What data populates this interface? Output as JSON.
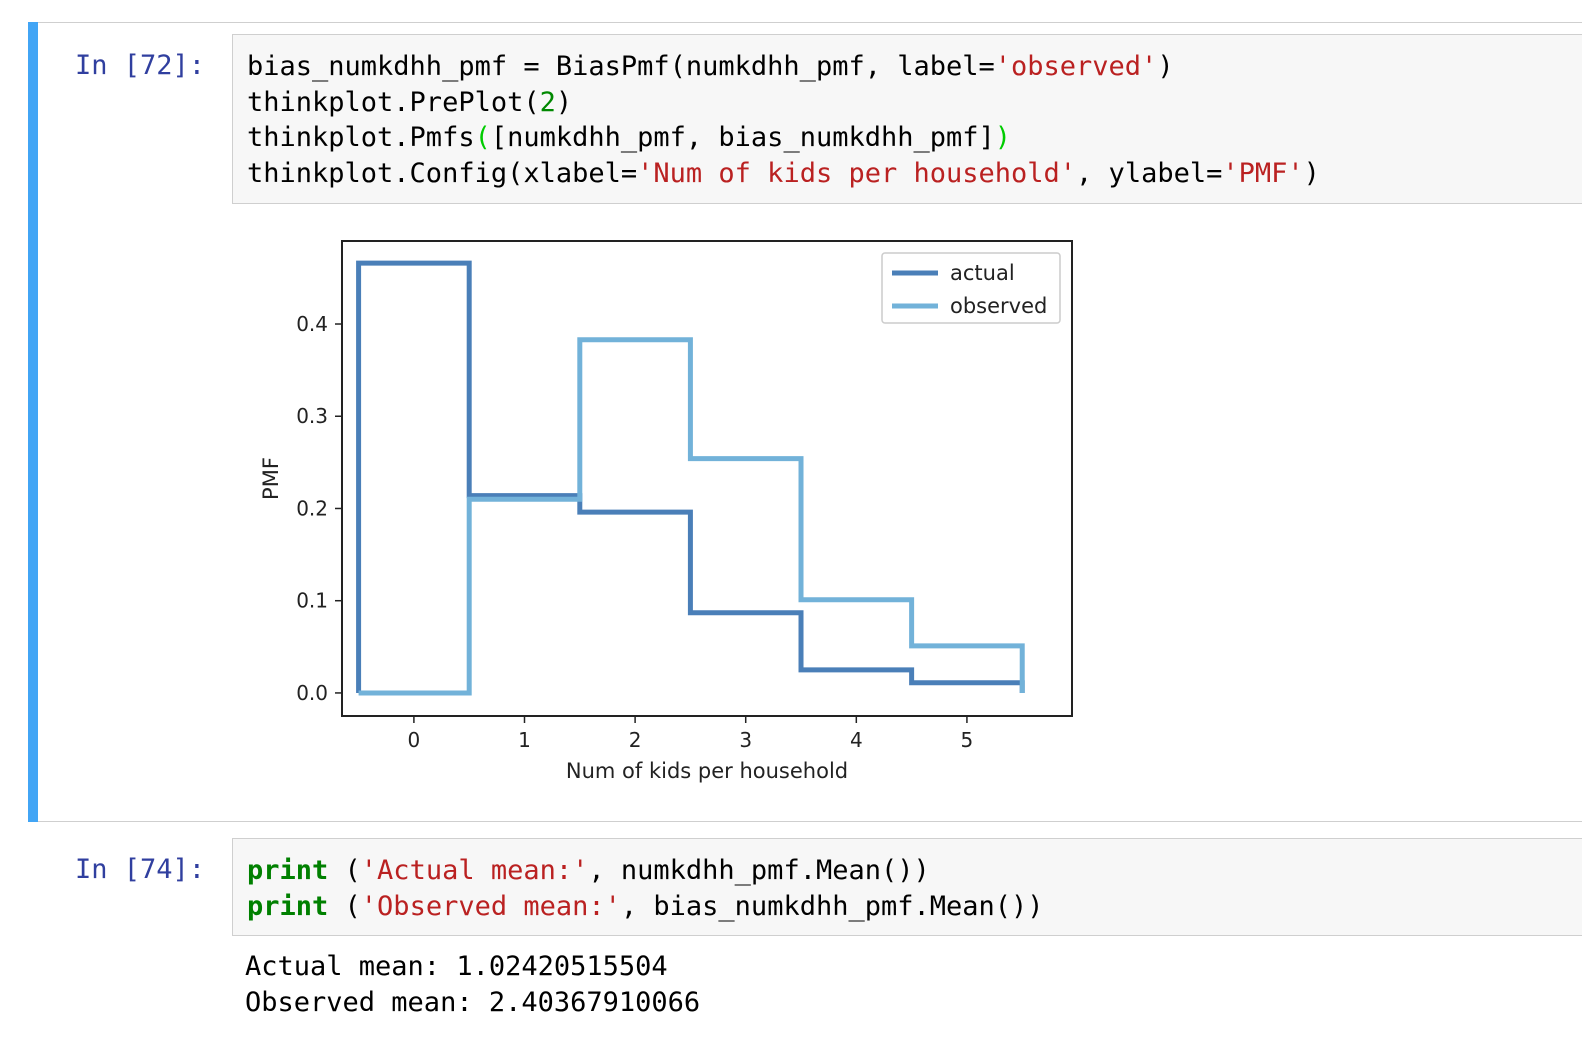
{
  "cells": [
    {
      "prompt": "In [72]:",
      "lines": [
        [
          {
            "t": "bias_numkdhh_pmf = BiasPmf(numkdhh_pmf, label=",
            "c": ""
          },
          {
            "t": "'observed'",
            "c": "s"
          },
          {
            "t": ")",
            "c": ""
          }
        ],
        [
          {
            "t": "thinkplot.PrePlot(",
            "c": ""
          },
          {
            "t": "2",
            "c": "n"
          },
          {
            "t": ")",
            "c": ""
          }
        ],
        [
          {
            "t": "thinkplot.Pmfs",
            "c": ""
          },
          {
            "t": "(",
            "c": "bm"
          },
          {
            "t": "[numkdhh_pmf, bias_numkdhh_pmf]",
            "c": ""
          },
          {
            "t": ")",
            "c": "bm"
          }
        ],
        [
          {
            "t": "thinkplot.Config(xlabel=",
            "c": ""
          },
          {
            "t": "'Num of kids per household'",
            "c": "s"
          },
          {
            "t": ", ylabel=",
            "c": ""
          },
          {
            "t": "'PMF'",
            "c": "s"
          },
          {
            "t": ")",
            "c": ""
          }
        ]
      ]
    },
    {
      "prompt": "In [74]:",
      "lines": [
        [
          {
            "t": "print",
            "c": "kw"
          },
          {
            "t": " (",
            "c": ""
          },
          {
            "t": "'Actual mean:'",
            "c": "s"
          },
          {
            "t": ", numkdhh_pmf.Mean())",
            "c": ""
          }
        ],
        [
          {
            "t": "print",
            "c": "kw"
          },
          {
            "t": " (",
            "c": ""
          },
          {
            "t": "'Observed mean:'",
            "c": "s"
          },
          {
            "t": ", bias_numkdhh_pmf.Mean())",
            "c": ""
          }
        ]
      ],
      "output": [
        "Actual mean: 1.02420515504",
        "Observed mean: 2.40367910066"
      ]
    }
  ],
  "chart_data": {
    "type": "line",
    "step": true,
    "title": "",
    "xlabel": "Num of kids per household",
    "ylabel": "PMF",
    "xlim": [
      -0.65,
      5.95
    ],
    "ylim": [
      -0.025,
      0.49
    ],
    "x_ticks": [
      0,
      1,
      2,
      3,
      4,
      5
    ],
    "y_ticks": [
      0.0,
      0.1,
      0.2,
      0.3,
      0.4
    ],
    "y_tick_labels": [
      "0.0",
      "0.1",
      "0.2",
      "0.3",
      "0.4"
    ],
    "legend_position": "top-right",
    "x": [
      0,
      1,
      2,
      3,
      4,
      5
    ],
    "series": [
      {
        "name": "actual",
        "color": "#4a7fb8",
        "values": [
          0.466,
          0.214,
          0.196,
          0.087,
          0.025,
          0.011
        ]
      },
      {
        "name": "observed",
        "color": "#72b2d9",
        "values": [
          0.0,
          0.21,
          0.383,
          0.254,
          0.101,
          0.051
        ]
      }
    ]
  }
}
